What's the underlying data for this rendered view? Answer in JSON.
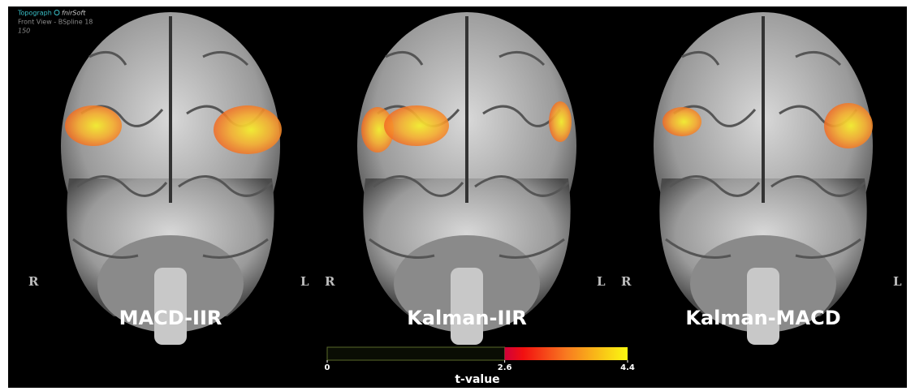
{
  "header": {
    "software": "Topograph",
    "brand": "fnirSoft",
    "view": "Front View - BSpline 18",
    "frame": "150"
  },
  "panels": [
    {
      "title": "MACD-IIR",
      "left_label": "R",
      "right_label": "L"
    },
    {
      "title": "Kalman-IIR",
      "left_label": "R",
      "right_label": "L"
    },
    {
      "title": "Kalman-MACD",
      "left_label": "R",
      "right_label": "L"
    }
  ],
  "colorbar": {
    "range": [
      0,
      4.4
    ],
    "threshold": 2.6,
    "ticks": [
      0,
      2.6,
      4.4
    ],
    "label": "t-value"
  }
}
